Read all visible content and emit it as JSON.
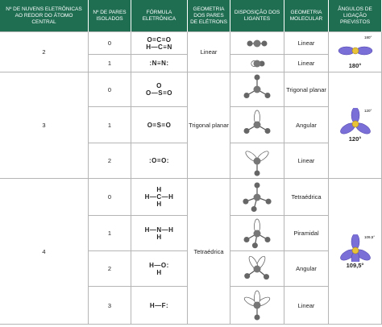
{
  "header": [
    "Nº DE NUVENS ELETRÔNICAS AO REDOR DO ÁTOMO CENTRAL",
    "Nº DE PARES ISOLADOS",
    "FÓRMULA ELETRÔNICA",
    "GEOMETRIA DOS PARES DE ELÉTRONS",
    "DISPOSIÇÃO DOS LIGANTES",
    "GEOMETRIA MOLECULAR",
    "ÂNGULOS DE LIGAÇÃO PREVISTOS"
  ],
  "groups": [
    {
      "clouds": 2,
      "geometry": "Linear",
      "diagram_label": "180°",
      "angle": "180°",
      "rows": [
        {
          "pairs": 0,
          "formula": [
            "O=C=O",
            "H—C≡N"
          ],
          "molecular": "Linear"
        },
        {
          "pairs": 1,
          "formula": [
            ":N≡N:"
          ],
          "molecular": "Linear"
        }
      ]
    },
    {
      "clouds": 3,
      "geometry": "Trigonal planar",
      "diagram_label": "120°",
      "angle": "120°",
      "rows": [
        {
          "pairs": 0,
          "formula": [
            "O",
            "O—S=O"
          ],
          "molecular": "Trigonal planar"
        },
        {
          "pairs": 1,
          "formula": [
            "O=S=O"
          ],
          "molecular": "Angular"
        },
        {
          "pairs": 2,
          "formula": [
            ":O=O:"
          ],
          "molecular": "Linear"
        }
      ]
    },
    {
      "clouds": 4,
      "geometry": "Tetraédrica",
      "diagram_label": "109,5°",
      "angle": "109,5°",
      "rows": [
        {
          "pairs": 0,
          "formula": [
            "H",
            "H—C—H",
            "H"
          ],
          "molecular": "Tetraédrica"
        },
        {
          "pairs": 1,
          "formula": [
            "H—N—H",
            "H"
          ],
          "molecular": "Piramidal"
        },
        {
          "pairs": 2,
          "formula": [
            "H—O:",
            "H"
          ],
          "molecular": "Angular"
        },
        {
          "pairs": 3,
          "formula": [
            "H—F:"
          ],
          "molecular": "Linear"
        }
      ]
    }
  ]
}
